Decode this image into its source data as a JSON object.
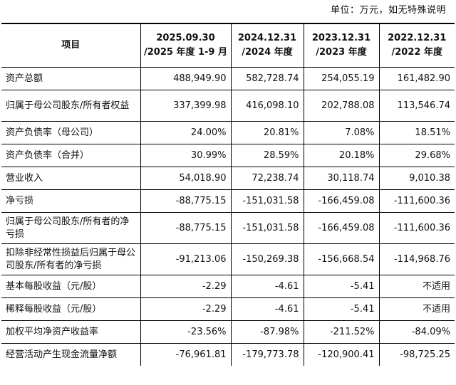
{
  "unit_note": "单位：万元，如无特殊说明",
  "header": {
    "item": "项目",
    "columns": [
      {
        "line1": "2025.09.30",
        "line2": "/2025 年度 1-9 月"
      },
      {
        "line1": "2024.12.31",
        "line2": "/2024 年度"
      },
      {
        "line1": "2023.12.31",
        "line2": "/2023 年度"
      },
      {
        "line1": "2022.12.31",
        "line2": "/2022 年度"
      }
    ]
  },
  "rows": [
    {
      "label": "资产总额",
      "values": [
        "488,949.90",
        "582,728.74",
        "254,055.19",
        "161,482.90"
      ]
    },
    {
      "label": "归属于母公司股东/所有者权益",
      "values": [
        "337,399.98",
        "416,098.10",
        "202,788.08",
        "113,546.74"
      ]
    },
    {
      "label": "资产负债率（母公司）",
      "values": [
        "24.00%",
        "20.81%",
        "7.08%",
        "18.51%"
      ]
    },
    {
      "label": "资产负债率（合并）",
      "values": [
        "30.99%",
        "28.59%",
        "20.18%",
        "29.68%"
      ]
    },
    {
      "label": "营业收入",
      "values": [
        "54,018.90",
        "72,238.74",
        "30,118.74",
        "9,010.38"
      ]
    },
    {
      "label": "净亏损",
      "values": [
        "-88,775.15",
        "-151,031.58",
        "-166,459.08",
        "-111,600.36"
      ]
    },
    {
      "label": "归属于母公司股东/所有者的净亏损",
      "values": [
        "-88,775.15",
        "-151,031.58",
        "-166,459.08",
        "-111,600.36"
      ]
    },
    {
      "label": "扣除非经常性损益后归属于母公司股东/所有者的净亏损",
      "values": [
        "-91,213.06",
        "-150,269.38",
        "-156,668.54",
        "-114,968.76"
      ]
    },
    {
      "label": "基本每股收益（元/股）",
      "values": [
        "-2.29",
        "-4.61",
        "-5.41",
        "不适用"
      ]
    },
    {
      "label": "稀释每股收益（元/股）",
      "values": [
        "-2.29",
        "-4.61",
        "-5.41",
        "不适用"
      ]
    },
    {
      "label": "加权平均净资产收益率",
      "values": [
        "-23.56%",
        "-87.98%",
        "-211.52%",
        "-84.09%"
      ]
    },
    {
      "label": "经营活动产生现金流量净额",
      "values": [
        "-76,961.81",
        "-179,773.78",
        "-120,900.41",
        "-98,725.25"
      ]
    }
  ]
}
